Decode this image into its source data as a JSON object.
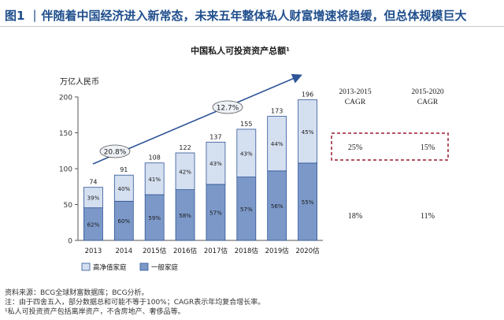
{
  "header": {
    "figure_label": "图1",
    "separator": "|",
    "title": "伴随着中国经济进入新常态，未来五年整体私人财富增速将趋缓，但总体规模巨大"
  },
  "chart_data": {
    "type": "bar",
    "stacked": true,
    "title": "中国私人可投资资产总额¹",
    "ylabel": "万亿人民币",
    "ylim": [
      0,
      200
    ],
    "yticks": [
      0,
      50,
      100,
      150,
      200
    ],
    "categories": [
      "2013",
      "2014",
      "2015估",
      "2016估",
      "2017估",
      "2018估",
      "2019估",
      "2020估"
    ],
    "totals": [
      74,
      91,
      108,
      122,
      137,
      155,
      173,
      196
    ],
    "series": [
      {
        "name": "一般家庭",
        "share_labels": [
          "62%",
          "60%",
          "59%",
          "58%",
          "57%",
          "57%",
          "56%",
          "55%"
        ],
        "shares": [
          62,
          60,
          59,
          58,
          57,
          57,
          56,
          55
        ]
      },
      {
        "name": "高净值家庭",
        "share_labels": [
          "39%",
          "40%",
          "41%",
          "42%",
          "43%",
          "43%",
          "44%",
          "45%"
        ],
        "shares": [
          39,
          40,
          41,
          42,
          43,
          43,
          44,
          45
        ]
      }
    ],
    "growth_annotations": [
      {
        "label": "20.8%",
        "period": "2013-2015"
      },
      {
        "label": "12.7%",
        "period": "2015-2020"
      }
    ],
    "legend": [
      "高净值家庭",
      "一般家庭"
    ],
    "legend_position": "bottom",
    "colors": {
      "general": "#7b98c8",
      "hnw": "#d4dff0",
      "outline": "#2f5597",
      "dashed_box": "#9b1b30"
    }
  },
  "cagr_table": {
    "columns": [
      "2013-2015\nCAGR",
      "2015-2020\nCAGR"
    ],
    "col1_lines": [
      "2013-2015",
      "CAGR"
    ],
    "col2_lines": [
      "2015-2020",
      "CAGR"
    ],
    "rows": [
      {
        "values": [
          "25%",
          "15%"
        ],
        "highlighted": true
      },
      {
        "values": [
          "18%",
          "11%"
        ],
        "highlighted": false
      }
    ]
  },
  "footer": {
    "source": "资料来源：BCG全球财富数据库；BCG分析。",
    "note": "注：由于四舍五入，部分数据总和可能不等于100%；CAGR表示年均复合增长率。",
    "footnote": "¹私人可投资资产包括离岸资产，不含房地产、奢侈品等。"
  }
}
